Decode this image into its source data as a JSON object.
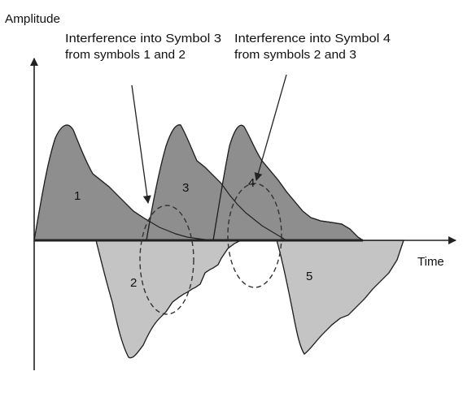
{
  "axes": {
    "y_label": "Amplitude",
    "x_label": "Time"
  },
  "annotations": {
    "symbol3": {
      "line1": "Interference into Symbol 3",
      "line2": "from symbols 1 and 2"
    },
    "symbol4": {
      "line1": "Interference into Symbol 4",
      "line2": "from symbols 2 and 3"
    }
  },
  "symbols": [
    "1",
    "2",
    "3",
    "4",
    "5"
  ],
  "colors": {
    "positive_fill": "#8e8e8e",
    "negative_fill": "#c4c4c4",
    "outline": "#222222",
    "axis": "#222222",
    "dashed_circle": "#333333"
  }
}
